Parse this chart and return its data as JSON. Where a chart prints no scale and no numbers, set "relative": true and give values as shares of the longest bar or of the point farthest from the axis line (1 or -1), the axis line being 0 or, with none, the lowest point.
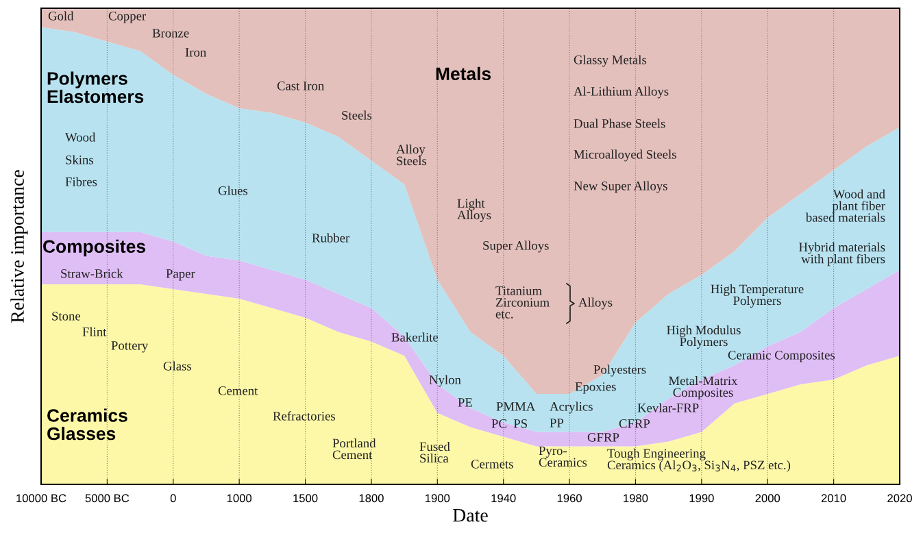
{
  "chart_data": {
    "type": "area",
    "stacked": true,
    "relative": true,
    "xlabel": "Date",
    "ylabel": "Relative importance",
    "grid": "x",
    "legend": false,
    "categories": [
      "10000 BC",
      null,
      "5000 BC",
      null,
      "0",
      null,
      "1000",
      null,
      "1500",
      null,
      "1800",
      null,
      "1900",
      null,
      "1940",
      null,
      "1960",
      null,
      "1980",
      null,
      "1990",
      null,
      "2000",
      null,
      "2010",
      null,
      "2020"
    ],
    "series": [
      {
        "name": "Ceramics\nGlasses",
        "color": "#fdf8a8",
        "values": [
          0.42,
          0.42,
          0.42,
          0.42,
          0.41,
          0.4,
          0.39,
          0.37,
          0.35,
          0.32,
          0.3,
          0.27,
          0.15,
          0.12,
          0.1,
          0.08,
          0.08,
          0.08,
          0.08,
          0.09,
          0.11,
          0.17,
          0.19,
          0.21,
          0.22,
          0.25,
          0.27
        ]
      },
      {
        "name": "Composites",
        "color": "#dfbdf5",
        "values": [
          0.11,
          0.11,
          0.11,
          0.11,
          0.1,
          0.08,
          0.08,
          0.08,
          0.08,
          0.08,
          0.07,
          0.04,
          0.06,
          0.04,
          0.03,
          0.03,
          0.03,
          0.03,
          0.05,
          0.09,
          0.11,
          0.08,
          0.1,
          0.11,
          0.15,
          0.16,
          0.18
        ]
      },
      {
        "name": "Polymers\nElastomers",
        "color": "#b8e2f0",
        "values": [
          0.43,
          0.42,
          0.4,
          0.38,
          0.35,
          0.34,
          0.32,
          0.33,
          0.33,
          0.33,
          0.31,
          0.32,
          0.22,
          0.16,
          0.14,
          0.08,
          0.08,
          0.12,
          0.21,
          0.22,
          0.22,
          0.24,
          0.27,
          0.29,
          0.29,
          0.3,
          0.3
        ]
      },
      {
        "name": "Metals",
        "color": "#e3c0bc",
        "values": [
          0.04,
          0.05,
          0.07,
          0.09,
          0.14,
          0.18,
          0.21,
          0.22,
          0.24,
          0.27,
          0.32,
          0.37,
          0.57,
          0.68,
          0.73,
          0.81,
          0.81,
          0.77,
          0.66,
          0.6,
          0.56,
          0.51,
          0.44,
          0.39,
          0.34,
          0.29,
          0.25
        ]
      }
    ],
    "annotations": [
      "Gold",
      "Copper",
      "Bronze",
      "Iron",
      "Cast Iron",
      "Steels",
      "Alloy\nSteels",
      "Wood",
      "Skins",
      "Fibres",
      "Glues",
      "Rubber",
      "Light\nAlloys",
      "Super Alloys",
      "Glassy Metals",
      "Al-Lithium Alloys",
      "Dual Phase Steels",
      "Microalloyed Steels",
      "New Super Alloys",
      "Titanium\nZirconium\netc.",
      "Alloys",
      "Wood and\nplant fiber\nbased materials",
      "Hybrid materials\nwith plant fibers",
      "High Temperature\nPolymers",
      "High Modulus\nPolymers",
      "Ceramic Composites",
      "Metal-Matrix\nComposites",
      "Polyesters",
      "Epoxies",
      "Acrylics",
      "PP",
      "PMMA",
      "PC  PS",
      "PE",
      "Nylon",
      "Bakerlite",
      "Kevlar-FRP",
      "CFRP",
      "GFRP",
      "Straw-Brick",
      "Paper",
      "Stone",
      "Flint",
      "Pottery",
      "Glass",
      "Cement",
      "Refractories",
      "Portland\nCement",
      "Fused\nSilica",
      "Cermets",
      "Pyro-\nCeramics",
      "Tough Engineering\nCeramics (Al$_{2}$O$_{3}$, Si$_{3}$N$_{4}$, PSZ etc.)"
    ]
  }
}
